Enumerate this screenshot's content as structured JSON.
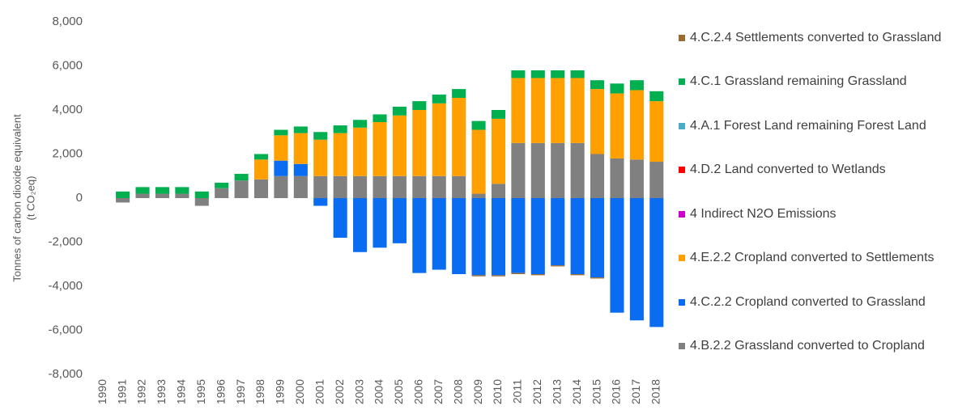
{
  "chart_data": {
    "type": "stacked_bar",
    "y_label": [
      "Tonnes of carbon dioxide equivalent",
      "(t CO₂eq)"
    ],
    "categories": [
      "1990",
      "1991",
      "1992",
      "1993",
      "1994",
      "1995",
      "1996",
      "1997",
      "1998",
      "1999",
      "2000",
      "2001",
      "2002",
      "2003",
      "2004",
      "2005",
      "2006",
      "2007",
      "2008",
      "2009",
      "2010",
      "2011",
      "2012",
      "2013",
      "2014",
      "2015",
      "2016",
      "2017",
      "2018"
    ],
    "series": [
      {
        "name": "4.B.2.2 Grassland converted to Cropland",
        "color": "#808080",
        "values": [
          0,
          -200,
          200,
          200,
          200,
          -350,
          450,
          800,
          850,
          1000,
          1000,
          1000,
          1000,
          1000,
          1000,
          1000,
          1000,
          1000,
          1000,
          200,
          650,
          2500,
          2500,
          2500,
          2500,
          2000,
          1800,
          1750,
          1650
        ]
      },
      {
        "name": "4.C.2.2 Cropland converted to Grassland",
        "color": "#0a6cf0",
        "values": [
          0,
          0,
          0,
          0,
          0,
          0,
          0,
          0,
          0,
          700,
          550,
          -350,
          -1800,
          -2450,
          -2250,
          -2050,
          -3400,
          -3250,
          -3450,
          -3500,
          -3500,
          -3400,
          -3450,
          -3050,
          -3450,
          -3600,
          -5200,
          -5550,
          -5850
        ]
      },
      {
        "name": "4.E.2.2 Cropland converted to Settlements",
        "color": "#ffa000",
        "values": [
          0,
          0,
          0,
          0,
          0,
          0,
          0,
          0,
          900,
          1150,
          1400,
          1650,
          1950,
          2200,
          2450,
          2750,
          3000,
          3300,
          3550,
          2900,
          2950,
          2950,
          2950,
          2950,
          2950,
          2950,
          2950,
          3150,
          2750
        ]
      },
      {
        "name": "4 Indirect N2O Emissions",
        "color": "#cc00cc",
        "values": [
          0,
          0,
          0,
          0,
          0,
          0,
          0,
          0,
          0,
          0,
          0,
          0,
          0,
          0,
          0,
          0,
          0,
          0,
          0,
          0,
          0,
          0,
          0,
          0,
          0,
          0,
          0,
          0,
          0
        ]
      },
      {
        "name": "4.D.2 Land converted to Wetlands",
        "color": "#ff0000",
        "values": [
          0,
          0,
          0,
          0,
          0,
          0,
          0,
          0,
          0,
          0,
          0,
          0,
          0,
          0,
          0,
          0,
          0,
          0,
          0,
          0,
          0,
          0,
          0,
          0,
          0,
          0,
          0,
          0,
          0
        ]
      },
      {
        "name": "4.A.1 Forest Land remaining Forest Land",
        "color": "#4bacc6",
        "values": [
          0,
          0,
          0,
          0,
          0,
          0,
          0,
          0,
          0,
          0,
          0,
          0,
          0,
          0,
          0,
          0,
          0,
          0,
          0,
          0,
          0,
          0,
          0,
          0,
          0,
          0,
          0,
          0,
          0
        ]
      },
      {
        "name": "4.C.1 Grassland remaining Grassland",
        "color": "#00b050",
        "values": [
          0,
          300,
          300,
          300,
          300,
          300,
          250,
          300,
          250,
          250,
          300,
          350,
          350,
          350,
          350,
          400,
          400,
          400,
          400,
          400,
          400,
          350,
          350,
          350,
          350,
          400,
          450,
          450,
          450
        ]
      },
      {
        "name": "4.C.2.4 Settlements converted to Grassland",
        "color": "#9c6b30",
        "values": [
          0,
          0,
          0,
          0,
          0,
          0,
          0,
          0,
          0,
          0,
          0,
          0,
          0,
          0,
          0,
          0,
          0,
          0,
          0,
          -50,
          -50,
          -50,
          -50,
          -50,
          -50,
          -50,
          0,
          0,
          0
        ]
      }
    ],
    "ylim": [
      -8000,
      8000
    ],
    "yticks": [
      {
        "value": -8000,
        "label": "-8,000"
      },
      {
        "value": -6000,
        "label": "-6,000"
      },
      {
        "value": -4000,
        "label": "-4,000"
      },
      {
        "value": -2000,
        "label": "-2,000"
      },
      0,
      {
        "value": 2000,
        "label": "2,000"
      },
      {
        "value": 4000,
        "label": "4,000"
      },
      {
        "value": 6000,
        "label": "6,000"
      },
      {
        "value": 8000,
        "label": "8,000"
      }
    ],
    "grid": false,
    "legend": "right"
  }
}
